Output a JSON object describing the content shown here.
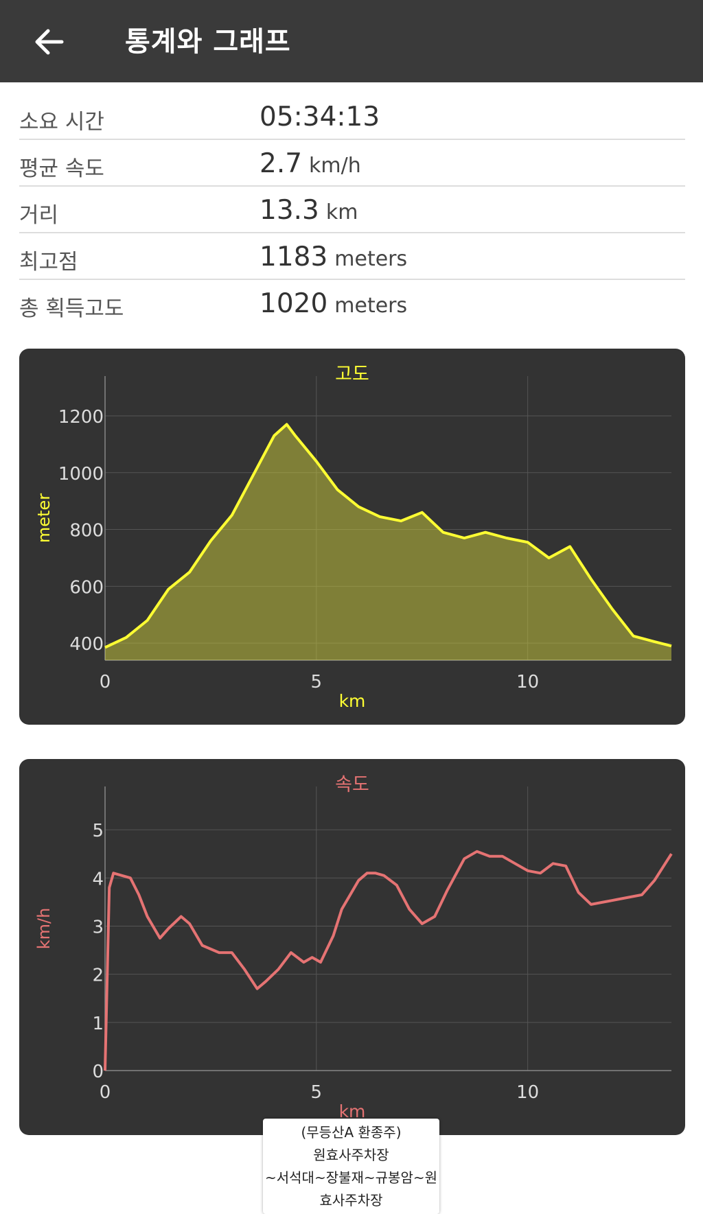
{
  "header": {
    "title": "통계와 그래프"
  },
  "stats": [
    {
      "label": "소요 시간",
      "value": "05:34:13",
      "unit": ""
    },
    {
      "label": "평균 속도",
      "value": "2.7",
      "unit": "km/h"
    },
    {
      "label": "거리",
      "value": "13.3",
      "unit": "km"
    },
    {
      "label": "최고점",
      "value": "1183",
      "unit": "meters"
    },
    {
      "label": "총 획득고도",
      "value": "1020",
      "unit": "meters"
    }
  ],
  "colors": {
    "elevation": "#ffff33",
    "speed": "#e57373",
    "card_bg": "#333333",
    "grid": "#555555",
    "axis_text": "#dddddd"
  },
  "chart_data": [
    {
      "type": "area",
      "title": "고도",
      "xlabel": "km",
      "ylabel": "meter",
      "xlim": [
        0,
        13.4
      ],
      "ylim": [
        340,
        1340
      ],
      "xticks": [
        0,
        5,
        10
      ],
      "yticks": [
        400,
        600,
        800,
        1000,
        1200
      ],
      "grid": true,
      "x": [
        0,
        0.5,
        1,
        1.5,
        2,
        2.5,
        3,
        3.5,
        4,
        4.3,
        4.5,
        5,
        5.5,
        6,
        6.5,
        7,
        7.5,
        8,
        8.5,
        9,
        9.5,
        10,
        10.5,
        11,
        11.5,
        12,
        12.5,
        13,
        13.4
      ],
      "values": [
        385,
        420,
        480,
        590,
        650,
        760,
        850,
        990,
        1130,
        1170,
        1130,
        1040,
        940,
        880,
        845,
        830,
        860,
        790,
        770,
        790,
        770,
        755,
        700,
        740,
        625,
        520,
        425,
        405,
        390
      ]
    },
    {
      "type": "line",
      "title": "속도",
      "xlabel": "km",
      "ylabel": "km/h",
      "xlim": [
        0,
        13.4
      ],
      "ylim": [
        0,
        5.9
      ],
      "xticks": [
        0,
        5,
        10
      ],
      "yticks": [
        0,
        1,
        2,
        3,
        4,
        5
      ],
      "grid": true,
      "x": [
        0,
        0.1,
        0.2,
        0.6,
        0.8,
        1,
        1.3,
        1.5,
        1.8,
        2,
        2.3,
        2.7,
        3,
        3.3,
        3.6,
        3.8,
        4.1,
        4.4,
        4.7,
        4.9,
        5.1,
        5.4,
        5.6,
        5.8,
        6,
        6.2,
        6.4,
        6.6,
        6.9,
        7.2,
        7.5,
        7.8,
        8.1,
        8.5,
        8.8,
        9.1,
        9.4,
        9.7,
        10,
        10.3,
        10.6,
        10.9,
        11.2,
        11.5,
        11.8,
        12.1,
        12.4,
        12.7,
        13,
        13.4
      ],
      "values": [
        0,
        3.8,
        4.1,
        4,
        3.65,
        3.2,
        2.75,
        2.95,
        3.2,
        3.05,
        2.6,
        2.45,
        2.45,
        2.1,
        1.7,
        1.85,
        2.1,
        2.45,
        2.25,
        2.35,
        2.25,
        2.8,
        3.35,
        3.65,
        3.95,
        4.1,
        4.1,
        4.05,
        3.85,
        3.35,
        3.05,
        3.2,
        3.75,
        4.4,
        4.55,
        4.45,
        4.45,
        4.3,
        4.15,
        4.1,
        4.3,
        4.25,
        3.7,
        3.45,
        3.5,
        3.55,
        3.6,
        3.65,
        3.95,
        4.5
      ]
    }
  ],
  "popup": {
    "lines": [
      "(무등산A 환종주)",
      "원효사주차장",
      "~서석대~장불재~규봉암~원",
      "효사주차장"
    ]
  }
}
